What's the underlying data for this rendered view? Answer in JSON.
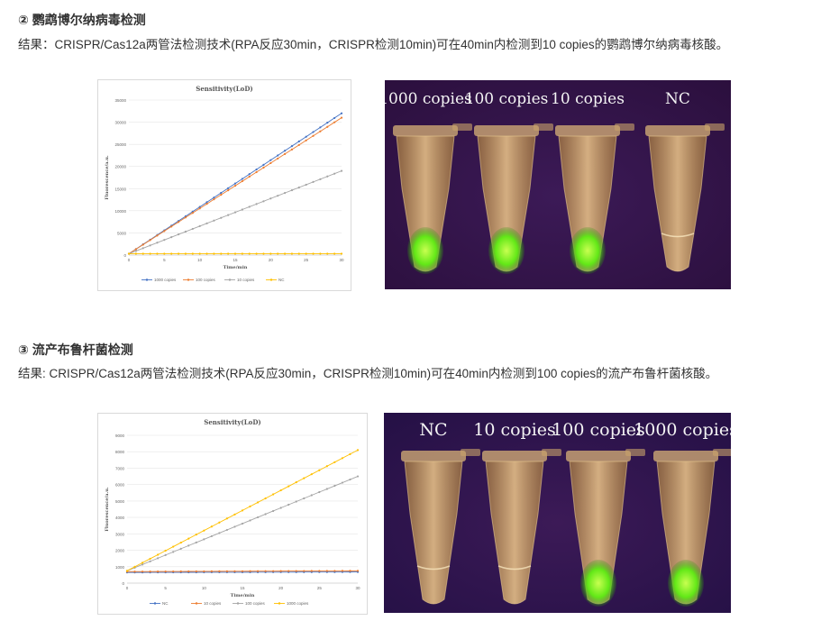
{
  "sections": [
    {
      "heading": "② 鹦鹉博尔纳病毒检测",
      "result": "结果：CRISPR/Cas12a两管法检测技术(RPA反应30min，CRISPR检测10min)可在40min内检测到10 copies的鹦鹉博尔纳病毒核酸。",
      "photo_labels": [
        "1000 copies",
        "100 copies",
        "10 copies",
        "NC"
      ],
      "tube_glow": [
        "bright",
        "bright",
        "bright",
        "none"
      ]
    },
    {
      "heading": "③ 流产布鲁杆菌检测",
      "result": "结果: CRISPR/Cas12a两管法检测技术(RPA反应30min，CRISPR检测10min)可在40min内检测到100 copies的流产布鲁杆菌核酸。",
      "photo_labels": [
        "NC",
        "10 copies",
        "100 copies",
        "1000 copies"
      ],
      "tube_glow": [
        "none",
        "none",
        "bright",
        "bright"
      ]
    }
  ],
  "chart_data": [
    {
      "type": "line",
      "title": "Sensitivity(LoD)",
      "xlabel": "Time/min",
      "ylabel": "Fluorescence/a.u.",
      "xlim": [
        0,
        30
      ],
      "ylim": [
        0,
        35000
      ],
      "xticks": [
        0,
        5,
        10,
        15,
        20,
        25,
        30
      ],
      "yticks": [
        0,
        5000,
        10000,
        15000,
        20000,
        25000,
        30000,
        35000
      ],
      "legend_position": "bottom",
      "series": [
        {
          "name": "1000 copies",
          "color": "#4472c4",
          "start": 300,
          "end": 32000
        },
        {
          "name": "100 copies",
          "color": "#ed7d31",
          "start": 300,
          "end": 31000
        },
        {
          "name": "10 copies",
          "color": "#a5a5a5",
          "start": 300,
          "end": 19000
        },
        {
          "name": "NC",
          "color": "#ffc000",
          "start": 300,
          "end": 300
        }
      ]
    },
    {
      "type": "line",
      "title": "Sensitivity(LoD)",
      "xlabel": "Time/min",
      "ylabel": "Fluorescence/a.u.",
      "xlim": [
        0,
        30
      ],
      "ylim": [
        0,
        9000
      ],
      "xticks": [
        0,
        5,
        10,
        15,
        20,
        25,
        30
      ],
      "yticks": [
        0,
        1000,
        2000,
        3000,
        4000,
        5000,
        6000,
        7000,
        8000,
        9000
      ],
      "legend_position": "bottom",
      "series": [
        {
          "name": "NC",
          "color": "#4472c4",
          "start": 650,
          "end": 680
        },
        {
          "name": "10 copies",
          "color": "#ed7d31",
          "start": 700,
          "end": 750
        },
        {
          "name": "100 copies",
          "color": "#a5a5a5",
          "start": 750,
          "end": 6500
        },
        {
          "name": "1000 copies",
          "color": "#ffc000",
          "start": 750,
          "end": 8100
        }
      ]
    }
  ]
}
